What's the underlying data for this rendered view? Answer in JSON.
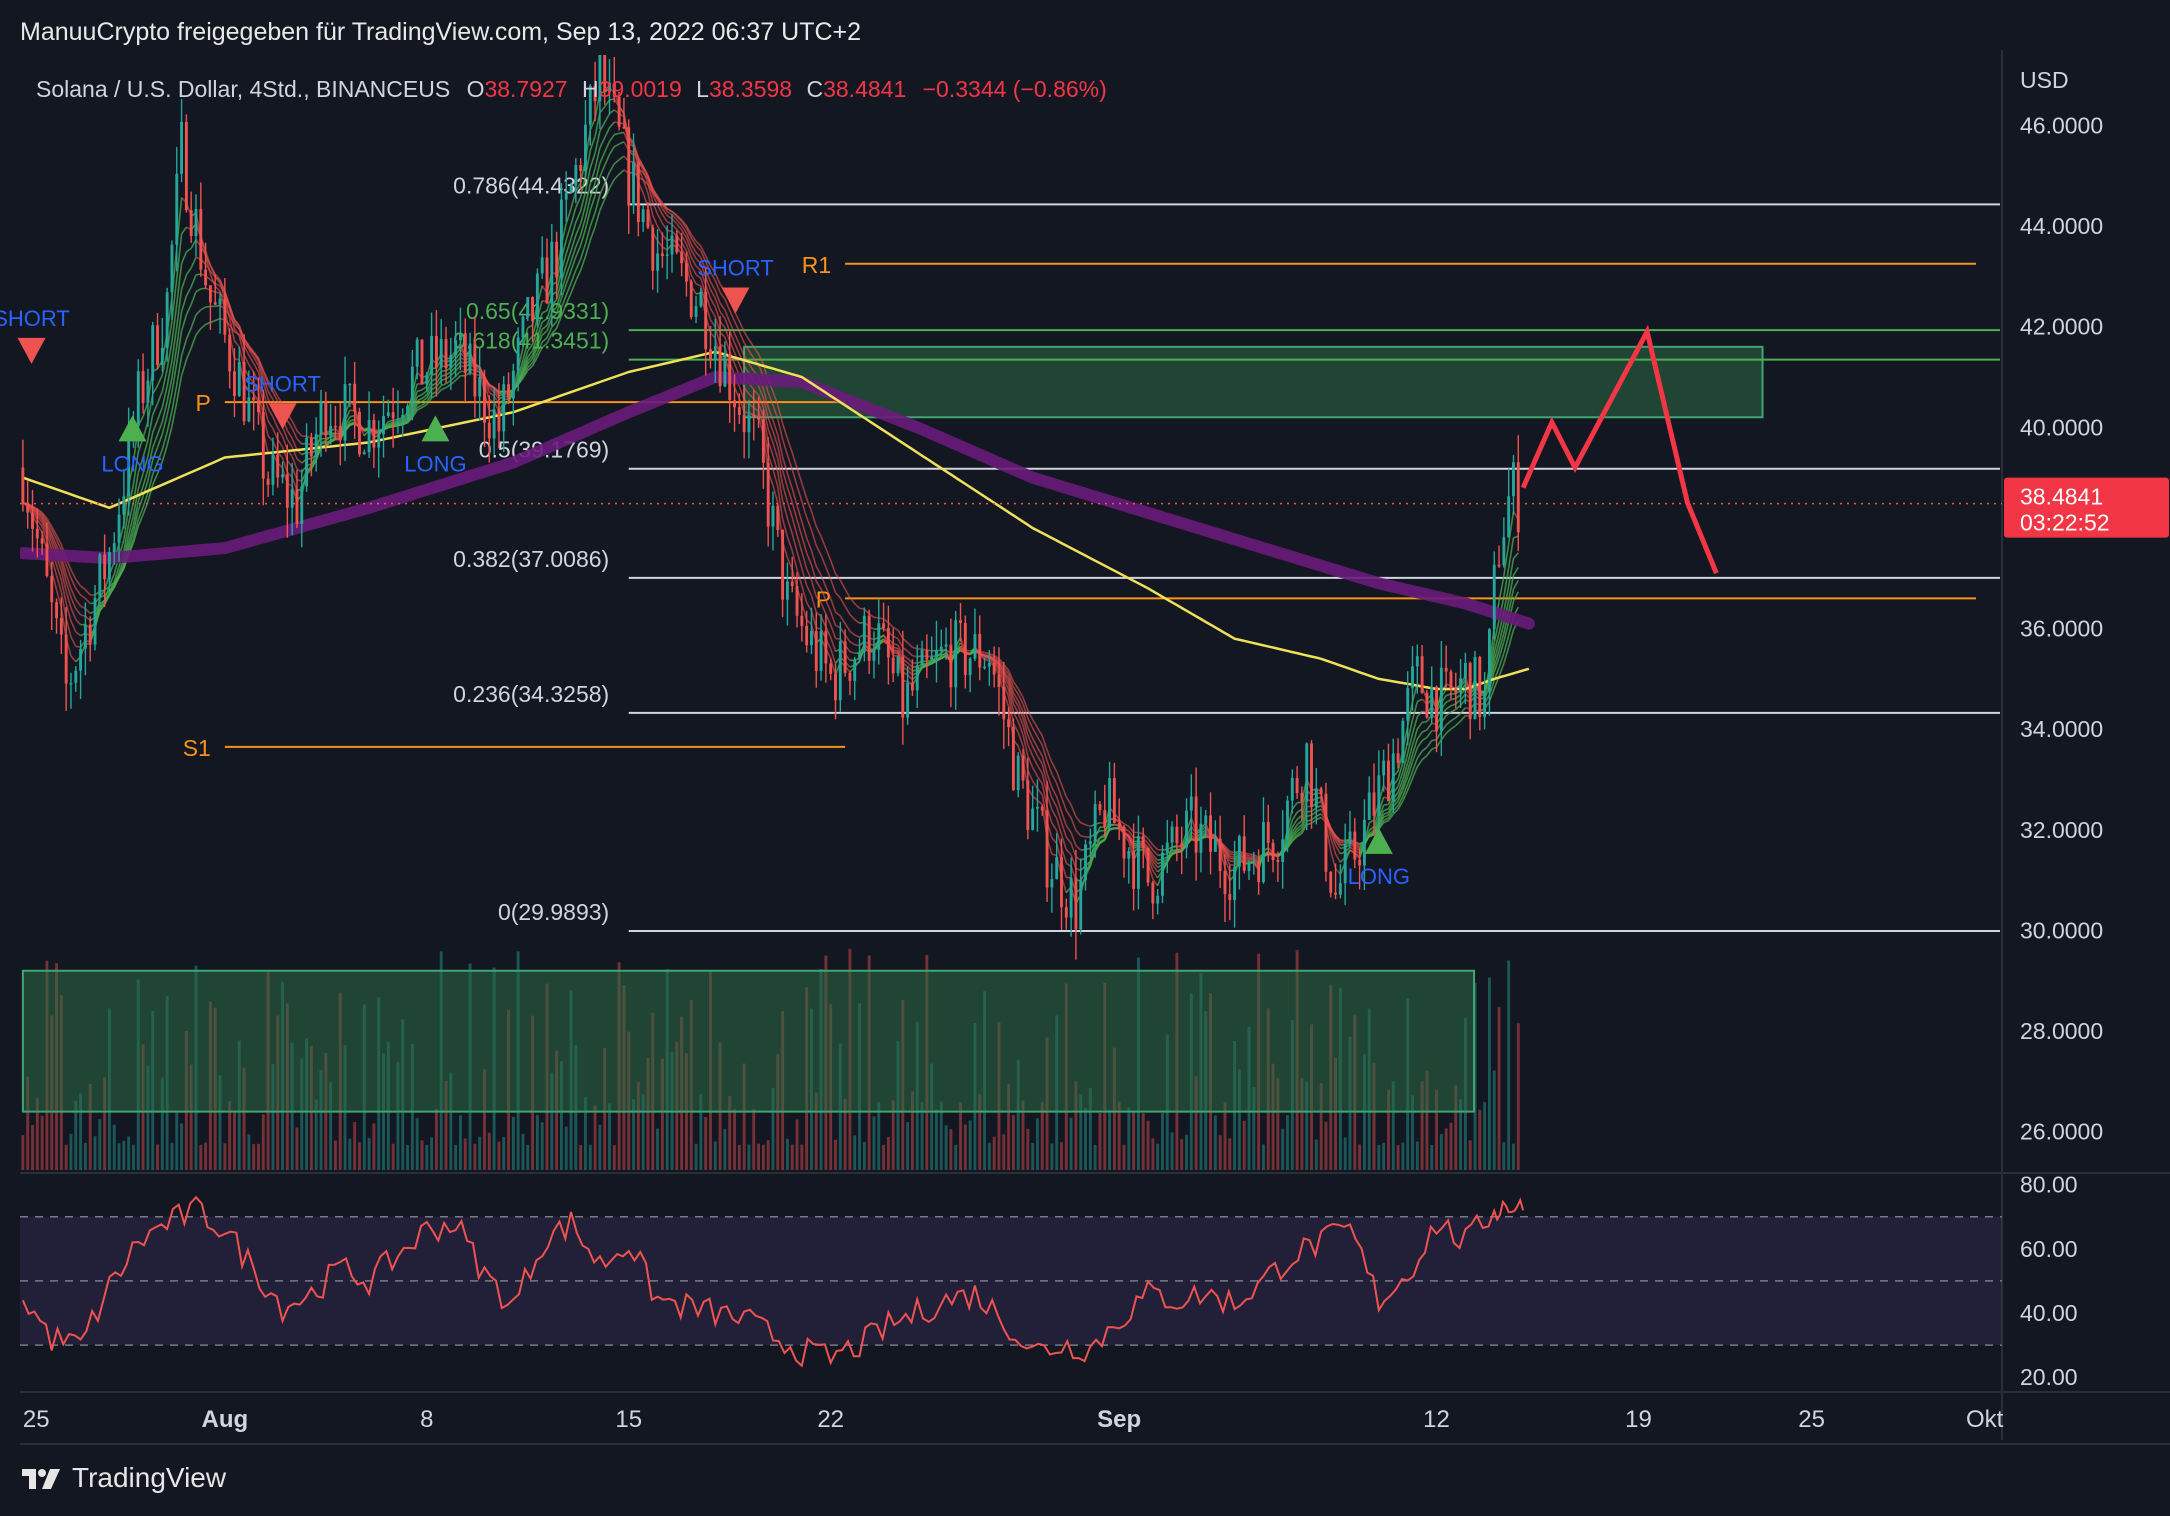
{
  "header": {
    "publisher": "ManuuCrypto freigegeben für TradingView.com, Sep 13, 2022 06:37 UTC+2"
  },
  "footer": {
    "brand": "TradingView",
    "logo_icon": "tradingview-logo-icon"
  },
  "colors": {
    "background": "#131722",
    "bull": "#26a69a",
    "bear": "#ef5350",
    "fib_white": "#d1d4dc",
    "pivot_orange": "#f7931a",
    "zone_green": "#2e6b45",
    "sma_yellow": "#f0e058",
    "ema_purple": "#6a1b7a",
    "forecast_red": "#f23645",
    "rsi_band": "#2a2540"
  },
  "chart_data": [
    {
      "type": "candlestick",
      "title": "Solana / U.S. Dollar, 4Std., BINANCEUS",
      "ohlc_legend": {
        "o_label": "O",
        "o_value": "38.7927",
        "h_label": "H",
        "h_value": "39.0019",
        "l_label": "L",
        "l_value": "38.3598",
        "c_label": "C",
        "c_value": "38.4841",
        "change": "−0.3344 (−0.86%)"
      },
      "currency": "USD",
      "y_ticks": [
        "46.0000",
        "44.0000",
        "42.0000",
        "40.0000",
        "36.0000",
        "34.0000",
        "32.0000",
        "30.0000",
        "28.0000",
        "26.0000"
      ],
      "ylim": [
        25.2,
        47.4
      ],
      "x_ticks": [
        "25",
        "Aug",
        "8",
        "15",
        "22",
        "Sep",
        "12",
        "19",
        "25",
        "Okt"
      ],
      "x_tick_days": [
        -7,
        0,
        7,
        14,
        21,
        31,
        42,
        49,
        55,
        61
      ],
      "xlim_days": [
        -7.1,
        61.6
      ],
      "last_price": {
        "value": "38.4841",
        "countdown": "03:22:52",
        "y": 38.4841
      },
      "close_path": [
        {
          "day": -7,
          "price": 39.2
        },
        {
          "day": -5.5,
          "price": 34.8
        },
        {
          "day": -4,
          "price": 37.5
        },
        {
          "day": -3,
          "price": 40.5
        },
        {
          "day": -2,
          "price": 42.5
        },
        {
          "day": -1.5,
          "price": 45.5
        },
        {
          "day": -0.5,
          "price": 42.5
        },
        {
          "day": 0.5,
          "price": 41.0
        },
        {
          "day": 1.5,
          "price": 39.0
        },
        {
          "day": 2.5,
          "price": 38.5
        },
        {
          "day": 3.5,
          "price": 40.5
        },
        {
          "day": 5,
          "price": 40.0
        },
        {
          "day": 6.5,
          "price": 41.0
        },
        {
          "day": 8,
          "price": 41.5
        },
        {
          "day": 9.5,
          "price": 40.0
        },
        {
          "day": 10.5,
          "price": 42.0
        },
        {
          "day": 11.5,
          "price": 43.5
        },
        {
          "day": 13,
          "price": 47.0
        },
        {
          "day": 14,
          "price": 45.0
        },
        {
          "day": 15,
          "price": 43.5
        },
        {
          "day": 16.5,
          "price": 42.5
        },
        {
          "day": 17.5,
          "price": 41.0
        },
        {
          "day": 18.5,
          "price": 39.5
        },
        {
          "day": 19.5,
          "price": 36.5
        },
        {
          "day": 21,
          "price": 35.0
        },
        {
          "day": 22.5,
          "price": 36.0
        },
        {
          "day": 23.5,
          "price": 34.5
        },
        {
          "day": 25,
          "price": 35.5
        },
        {
          "day": 26.5,
          "price": 35.5
        },
        {
          "day": 27.5,
          "price": 33.0
        },
        {
          "day": 28.5,
          "price": 31.5
        },
        {
          "day": 29.5,
          "price": 30.5
        },
        {
          "day": 30.5,
          "price": 32.5
        },
        {
          "day": 32,
          "price": 31.0
        },
        {
          "day": 33.5,
          "price": 32.0
        },
        {
          "day": 35,
          "price": 31.2
        },
        {
          "day": 36.5,
          "price": 32.0
        },
        {
          "day": 37.5,
          "price": 33.5
        },
        {
          "day": 38.5,
          "price": 30.7
        },
        {
          "day": 39.5,
          "price": 32.0
        },
        {
          "day": 40.5,
          "price": 33.5
        },
        {
          "day": 41.3,
          "price": 35.0
        },
        {
          "day": 42.3,
          "price": 34.5
        },
        {
          "day": 43,
          "price": 35.0
        },
        {
          "day": 43.7,
          "price": 34.5
        },
        {
          "day": 44.1,
          "price": 37.5
        },
        {
          "day": 44.6,
          "price": 38.8
        },
        {
          "day": 44.9,
          "price": 38.5
        }
      ],
      "fib_levels": [
        {
          "label": "0.786(44.4322)",
          "value": 44.4322
        },
        {
          "label": "0.65(41.9331)",
          "value": 41.9331
        },
        {
          "label": "0.618(41.3451)",
          "value": 41.3451
        },
        {
          "label": "0.5(39.1769)",
          "value": 39.1769
        },
        {
          "label": "0.382(37.0086)",
          "value": 37.0086
        },
        {
          "label": "0.236(34.3258)",
          "value": 34.3258
        },
        {
          "label": "0(29.9893)",
          "value": 29.9893
        }
      ],
      "pivot_levels": [
        {
          "label": "R1",
          "value": 43.25,
          "from_day": 21.5,
          "to_day": 60.7
        },
        {
          "label": "P",
          "value": 40.5,
          "from_day": 0,
          "to_day": 21.5
        },
        {
          "label": "P",
          "value": 36.6,
          "from_day": 21.5,
          "to_day": 60.7
        },
        {
          "label": "S1",
          "value": 33.65,
          "from_day": 0,
          "to_day": 21.5
        }
      ],
      "zones": [
        {
          "from_day": 18,
          "to_day": 53.3,
          "low": 40.2,
          "high": 41.6
        },
        {
          "from_day": -7,
          "to_day": 43.3,
          "low": 26.4,
          "high": 29.2
        }
      ],
      "signals": [
        {
          "type": "short",
          "label": "SHORT",
          "day": -6.7,
          "price": 41.5
        },
        {
          "type": "long",
          "label": "LONG",
          "day": -3.2,
          "price": 40.0
        },
        {
          "type": "short",
          "label": "SHORT",
          "day": 2,
          "price": 40.2
        },
        {
          "type": "long",
          "label": "LONG",
          "day": 7.3,
          "price": 40.0
        },
        {
          "type": "short",
          "label": "SHORT",
          "day": 17.7,
          "price": 42.5
        },
        {
          "type": "long",
          "label": "LONG",
          "day": 40,
          "price": 31.8
        }
      ],
      "sma": [
        {
          "day": -7,
          "price": 39.0
        },
        {
          "day": -4,
          "price": 38.4
        },
        {
          "day": 0,
          "price": 39.4
        },
        {
          "day": 5,
          "price": 39.7
        },
        {
          "day": 10,
          "price": 40.3
        },
        {
          "day": 14,
          "price": 41.1
        },
        {
          "day": 17,
          "price": 41.5
        },
        {
          "day": 20,
          "price": 41.0
        },
        {
          "day": 24,
          "price": 39.5
        },
        {
          "day": 28,
          "price": 38.0
        },
        {
          "day": 32,
          "price": 36.8
        },
        {
          "day": 35,
          "price": 35.8
        },
        {
          "day": 38,
          "price": 35.4
        },
        {
          "day": 40,
          "price": 35.0
        },
        {
          "day": 42,
          "price": 34.8
        },
        {
          "day": 43,
          "price": 34.8
        },
        {
          "day": 44,
          "price": 35.0
        },
        {
          "day": 45.2,
          "price": 35.2
        }
      ],
      "ema": [
        {
          "day": -7,
          "price": 37.5
        },
        {
          "day": -4,
          "price": 37.4
        },
        {
          "day": 0,
          "price": 37.6
        },
        {
          "day": 5,
          "price": 38.4
        },
        {
          "day": 10,
          "price": 39.3
        },
        {
          "day": 14,
          "price": 40.3
        },
        {
          "day": 17,
          "price": 41.0
        },
        {
          "day": 20,
          "price": 40.9
        },
        {
          "day": 24,
          "price": 40.0
        },
        {
          "day": 28,
          "price": 39.0
        },
        {
          "day": 32,
          "price": 38.3
        },
        {
          "day": 36,
          "price": 37.6
        },
        {
          "day": 40,
          "price": 36.9
        },
        {
          "day": 43,
          "price": 36.5
        },
        {
          "day": 45.2,
          "price": 36.1
        }
      ],
      "forecast_path": [
        {
          "day": 45.0,
          "price": 38.8
        },
        {
          "day": 46.0,
          "price": 40.1
        },
        {
          "day": 46.8,
          "price": 39.2
        },
        {
          "day": 49.3,
          "price": 41.9
        },
        {
          "day": 50.7,
          "price": 38.5
        },
        {
          "day": 51.7,
          "price": 37.1
        }
      ]
    },
    {
      "type": "line",
      "title": "",
      "y_ticks": [
        "80.00",
        "60.00",
        "40.00",
        "20.00"
      ],
      "ylim": [
        16,
        83
      ],
      "bands": [
        70,
        50,
        30
      ],
      "x": [
        -7,
        -6,
        -5,
        -4,
        -3,
        -2,
        -1,
        0,
        1,
        2,
        3,
        4,
        5,
        6,
        7,
        8,
        9,
        10,
        11,
        12,
        13,
        14,
        15,
        16,
        17,
        18,
        19,
        20,
        21,
        22,
        23,
        24,
        25,
        26,
        27,
        28,
        29,
        30,
        31,
        32,
        33,
        34,
        35,
        36,
        37,
        38,
        39,
        40,
        41,
        42,
        43,
        44,
        44.5,
        45
      ],
      "values": [
        45,
        32,
        30,
        48,
        62,
        68,
        72,
        66,
        54,
        42,
        46,
        54,
        50,
        58,
        66,
        68,
        52,
        42,
        62,
        68,
        55,
        62,
        44,
        42,
        40,
        38,
        33,
        28,
        26,
        30,
        36,
        40,
        44,
        46,
        38,
        28,
        30,
        29,
        38,
        46,
        44,
        46,
        43,
        50,
        58,
        62,
        66,
        44,
        52,
        68,
        62,
        72,
        74,
        72
      ]
    },
    {
      "type": "bar",
      "title": "",
      "x_start_day": -7,
      "x_step_day": 0.4
    }
  ]
}
